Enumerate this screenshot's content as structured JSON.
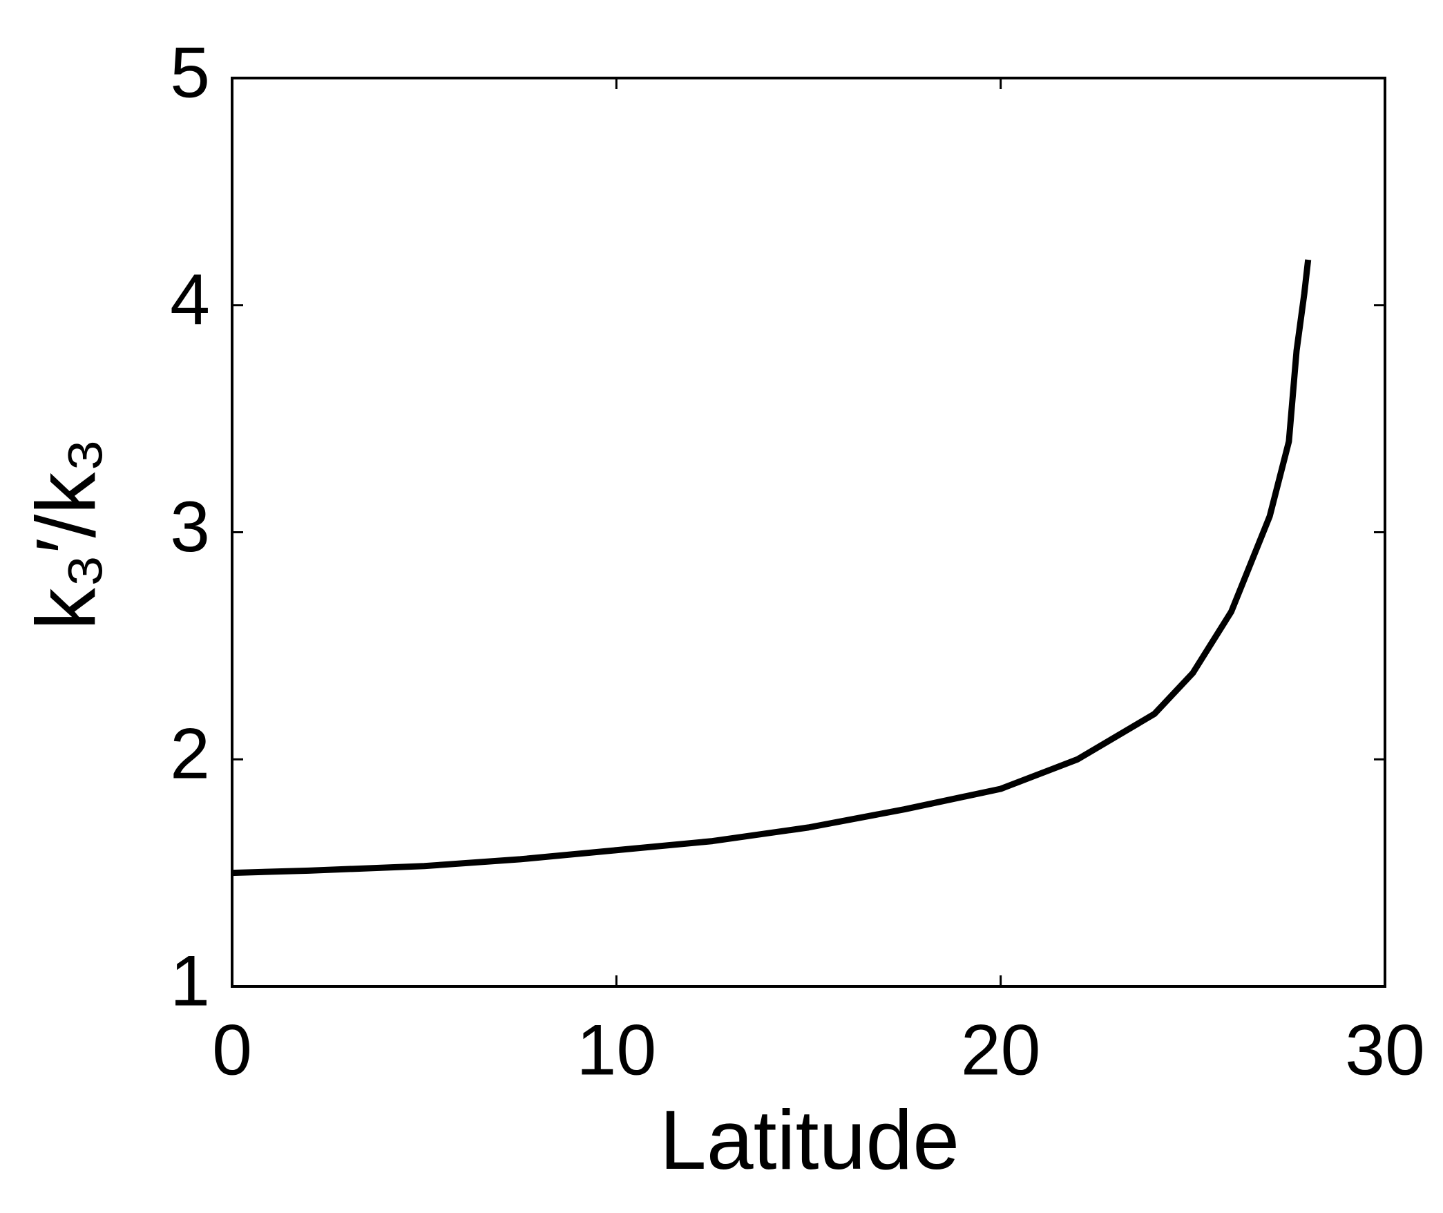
{
  "chart_data": {
    "type": "line",
    "xlabel": "Latitude",
    "ylabel": "k₃′/k₃",
    "x": [
      0,
      2,
      5,
      7.5,
      10,
      12.5,
      15,
      17.5,
      20,
      22,
      24,
      25,
      26,
      27,
      27.5,
      27.7,
      27.9,
      28
    ],
    "series": [
      {
        "name": "k3'/k3",
        "color": "#000000",
        "values": [
          1.5,
          1.51,
          1.53,
          1.56,
          1.6,
          1.64,
          1.7,
          1.78,
          1.87,
          2.0,
          2.2,
          2.38,
          2.65,
          3.07,
          3.4,
          3.8,
          4.05,
          4.2
        ]
      }
    ],
    "xlim": [
      0,
      30
    ],
    "xticks": [
      0,
      10,
      20,
      30
    ],
    "ylim": [
      1,
      5
    ],
    "yticks": [
      1,
      2,
      3,
      4,
      5
    ],
    "grid": false
  }
}
